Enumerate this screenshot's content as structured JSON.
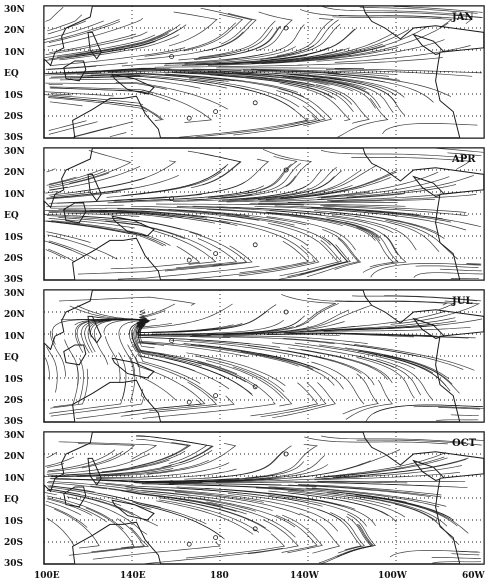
{
  "figure": {
    "lat_labels": [
      "30N",
      "20N",
      "10N",
      "EQ",
      "10S",
      "20S",
      "30S"
    ],
    "lon_labels": [
      "100E",
      "140E",
      "180",
      "140W",
      "100W",
      "60W"
    ],
    "panels": [
      {
        "month": "JAN"
      },
      {
        "month": "APR"
      },
      {
        "month": "JUL"
      },
      {
        "month": "OCT"
      }
    ],
    "map_extent": {
      "lat": [
        -30,
        30
      ],
      "lon": [
        100,
        300
      ]
    },
    "style": {
      "line_color": "#1a1a1a",
      "background": "#ffffff",
      "gridlines": "dotted"
    }
  }
}
